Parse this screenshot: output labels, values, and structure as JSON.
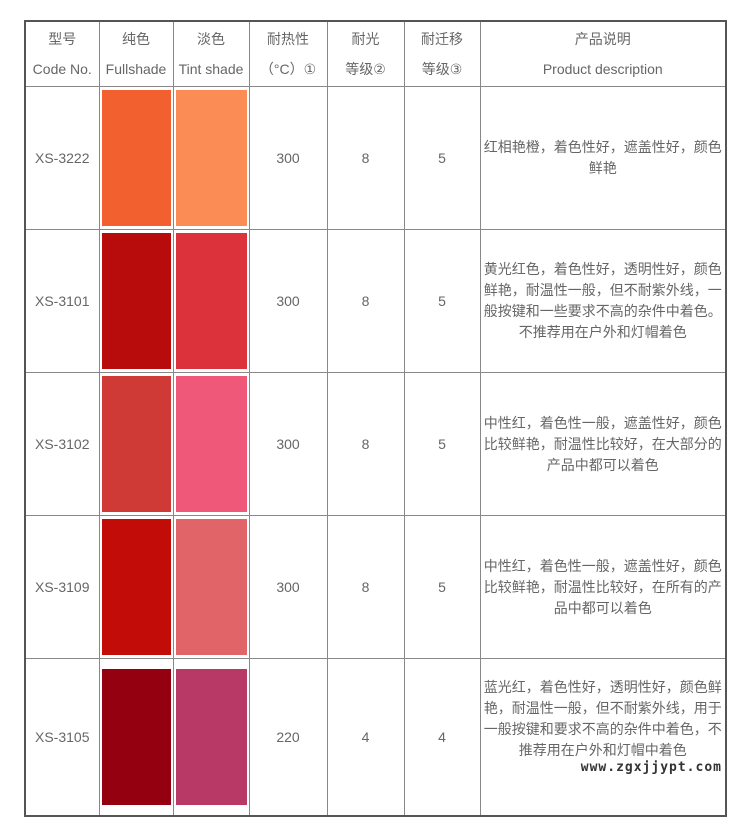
{
  "headers": [
    {
      "cn": "型号",
      "en": "Code No."
    },
    {
      "cn": "纯色",
      "en": "Fullshade"
    },
    {
      "cn": "淡色",
      "en": "Tint shade"
    },
    {
      "cn": "耐热性",
      "en": "（°C）①"
    },
    {
      "cn": "耐光",
      "en": "等级②"
    },
    {
      "cn": "耐迁移",
      "en": "等级③"
    },
    {
      "cn": "产品说明",
      "en": "Product description"
    }
  ],
  "rows": [
    {
      "code": "XS-3222",
      "fullshade_color": "#F26030",
      "tint_color": "#FC8C56",
      "heat": "300",
      "light": "8",
      "migration": "5",
      "desc": [
        "红相艳橙，着色性好，遮盖性好，颜色",
        "鲜艳"
      ]
    },
    {
      "code": "XS-3101",
      "fullshade_color": "#B80C0C",
      "tint_color": "#DC323C",
      "heat": "300",
      "light": "8",
      "migration": "5",
      "desc": [
        "黄光红色，着色性好，透明性好，颜色",
        "鲜艳，耐温性一般，但不耐紫外线，一",
        "般按键和一些要求不高的杂件中着色。",
        "不推荐用在户外和灯帽着色"
      ]
    },
    {
      "code": "XS-3102",
      "fullshade_color": "#CF3A36",
      "tint_color": "#F0587A",
      "heat": "300",
      "light": "8",
      "migration": "5",
      "desc": [
        "中性红，着色性一般，遮盖性好，颜色",
        "比较鲜艳，耐温性比较好，在大部分的",
        "产品中都可以着色"
      ]
    },
    {
      "code": "XS-3109",
      "fullshade_color": "#C20C08",
      "tint_color": "#E06468",
      "heat": "300",
      "light": "8",
      "migration": "5",
      "desc": [
        "中性红，着色性一般，遮盖性好，颜色",
        "比较鲜艳，耐温性比较好，在所有的产",
        "品中都可以着色"
      ]
    },
    {
      "code": "XS-3105",
      "fullshade_color": "#940010",
      "tint_color": "#B83866",
      "heat": "220",
      "light": "4",
      "migration": "4",
      "desc": [
        "蓝光红，着色性好，透明性好，颜色鲜",
        "艳，耐温性一般，但不耐紫外线，用于",
        "一般按键和要求不高的杂件中着色，不",
        "推荐用在户外和灯帽中着色"
      ]
    }
  ],
  "watermark": "www.zgxjjypt.com"
}
